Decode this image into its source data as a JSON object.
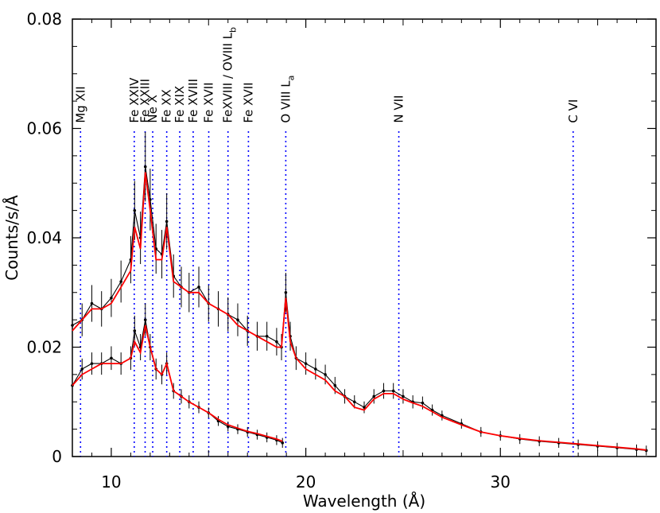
{
  "chart_data": {
    "type": "line",
    "xlabel": "Wavelength (Å)",
    "ylabel": "Counts/s/Å",
    "xlim": [
      8,
      38
    ],
    "ylim": [
      0,
      0.08
    ],
    "x_ticks": [
      10,
      20,
      30
    ],
    "x_tick_labels": [
      "10",
      "20",
      "30"
    ],
    "y_ticks": [
      0,
      0.02,
      0.04,
      0.06,
      0.08
    ],
    "y_tick_labels": [
      "0",
      "0.02",
      "0.04",
      "0.06",
      "0.08"
    ],
    "grid": false,
    "colors": {
      "data": "#000000",
      "model": "#ff0000",
      "lines": "#0000ff"
    },
    "line_markers": [
      {
        "label": "Mg XII",
        "x": 8.42
      },
      {
        "label": "Fe XXIV",
        "x": 11.18
      },
      {
        "label": "Fe XXIII",
        "x": 11.74
      },
      {
        "label": "Ne X",
        "x": 12.13
      },
      {
        "label": "Fe XX",
        "x": 12.85
      },
      {
        "label": "Fe XIX",
        "x": 13.52
      },
      {
        "label": "Fe XVIII",
        "x": 14.21
      },
      {
        "label": "Fe XVII",
        "x": 15.01
      },
      {
        "label": "FeXVIII / OVIII L_b",
        "x": 16.0
      },
      {
        "label": "Fe XVII",
        "x": 17.05
      },
      {
        "label": "O VIII L_a",
        "x": 18.97
      },
      {
        "label": "N VII",
        "x": 24.78
      },
      {
        "label": "C VI",
        "x": 33.74
      }
    ],
    "series": [
      {
        "kind": "data",
        "x": [
          8.0,
          8.5,
          9.0,
          9.5,
          10.0,
          10.5,
          11.0,
          11.2,
          11.5,
          11.75,
          12.0,
          12.3,
          12.6,
          12.85,
          13.2,
          13.6,
          14.0,
          14.5,
          15.0,
          15.5,
          16.0,
          16.5,
          17.0,
          17.5,
          18.0,
          18.5,
          18.75,
          18.97,
          19.2,
          19.5,
          20.0,
          20.5,
          21.0,
          21.5,
          22.0,
          22.5,
          23.0,
          23.5,
          24.0,
          24.5,
          25.0,
          25.5,
          26.0,
          26.5,
          27.0,
          28.0,
          29.0,
          30.0,
          31.0,
          32.0,
          33.0,
          34.0,
          35.0,
          36.0,
          37.0,
          37.5
        ],
        "y": [
          0.024,
          0.025,
          0.028,
          0.027,
          0.029,
          0.032,
          0.036,
          0.045,
          0.04,
          0.053,
          0.047,
          0.038,
          0.037,
          0.043,
          0.033,
          0.031,
          0.03,
          0.031,
          0.028,
          0.027,
          0.026,
          0.025,
          0.023,
          0.022,
          0.022,
          0.021,
          0.02,
          0.03,
          0.022,
          0.018,
          0.017,
          0.016,
          0.015,
          0.013,
          0.011,
          0.01,
          0.009,
          0.011,
          0.012,
          0.012,
          0.011,
          0.01,
          0.0098,
          0.0085,
          0.0075,
          0.006,
          0.0045,
          0.0038,
          0.0032,
          0.0028,
          0.0025,
          0.0022,
          0.0019,
          0.0016,
          0.0013,
          0.0011
        ]
      },
      {
        "kind": "model",
        "x": [
          8.0,
          8.5,
          9.0,
          9.5,
          10.0,
          10.5,
          11.0,
          11.2,
          11.5,
          11.75,
          12.0,
          12.3,
          12.6,
          12.85,
          13.2,
          13.6,
          14.0,
          14.5,
          15.0,
          15.5,
          16.0,
          16.5,
          17.0,
          17.5,
          18.0,
          18.5,
          18.75,
          18.97,
          19.2,
          19.5,
          20.0,
          20.5,
          21.0,
          21.5,
          22.0,
          22.5,
          23.0,
          23.5,
          24.0,
          24.5,
          25.0,
          25.5,
          26.0,
          26.5,
          27.0,
          28.0,
          29.0,
          30.0,
          31.0,
          32.0,
          33.0,
          34.0,
          35.0,
          36.0,
          37.0,
          37.5
        ],
        "y": [
          0.023,
          0.025,
          0.027,
          0.027,
          0.028,
          0.031,
          0.034,
          0.042,
          0.038,
          0.052,
          0.045,
          0.036,
          0.036,
          0.042,
          0.032,
          0.031,
          0.03,
          0.03,
          0.028,
          0.027,
          0.026,
          0.024,
          0.023,
          0.022,
          0.021,
          0.02,
          0.02,
          0.029,
          0.021,
          0.018,
          0.016,
          0.015,
          0.014,
          0.012,
          0.011,
          0.009,
          0.0085,
          0.0105,
          0.0115,
          0.0115,
          0.0105,
          0.0098,
          0.0092,
          0.0082,
          0.0072,
          0.0058,
          0.0045,
          0.0038,
          0.0033,
          0.0029,
          0.0026,
          0.0023,
          0.002,
          0.0017,
          0.0014,
          0.0012
        ]
      },
      {
        "kind": "data",
        "x": [
          8.0,
          8.5,
          9.0,
          9.5,
          10.0,
          10.5,
          11.0,
          11.2,
          11.5,
          11.75,
          12.0,
          12.3,
          12.6,
          12.85,
          13.2,
          13.6,
          14.0,
          14.5,
          15.0,
          15.5,
          16.0,
          16.5,
          17.0,
          17.5,
          18.0,
          18.5,
          18.8
        ],
        "y": [
          0.013,
          0.016,
          0.017,
          0.017,
          0.018,
          0.017,
          0.018,
          0.023,
          0.02,
          0.025,
          0.02,
          0.016,
          0.015,
          0.017,
          0.012,
          0.011,
          0.01,
          0.009,
          0.008,
          0.0065,
          0.0055,
          0.005,
          0.0045,
          0.004,
          0.0035,
          0.003,
          0.0025
        ]
      },
      {
        "kind": "model",
        "x": [
          8.0,
          8.5,
          9.0,
          9.5,
          10.0,
          10.5,
          11.0,
          11.2,
          11.5,
          11.75,
          12.0,
          12.3,
          12.6,
          12.85,
          13.2,
          13.6,
          14.0,
          14.5,
          15.0,
          15.5,
          16.0,
          16.5,
          17.0,
          17.5,
          18.0,
          18.5,
          18.8
        ],
        "y": [
          0.013,
          0.015,
          0.016,
          0.017,
          0.017,
          0.017,
          0.018,
          0.021,
          0.019,
          0.024,
          0.02,
          0.016,
          0.015,
          0.017,
          0.012,
          0.011,
          0.01,
          0.009,
          0.008,
          0.0068,
          0.0058,
          0.0052,
          0.0046,
          0.0042,
          0.0037,
          0.0032,
          0.0028
        ]
      }
    ]
  }
}
